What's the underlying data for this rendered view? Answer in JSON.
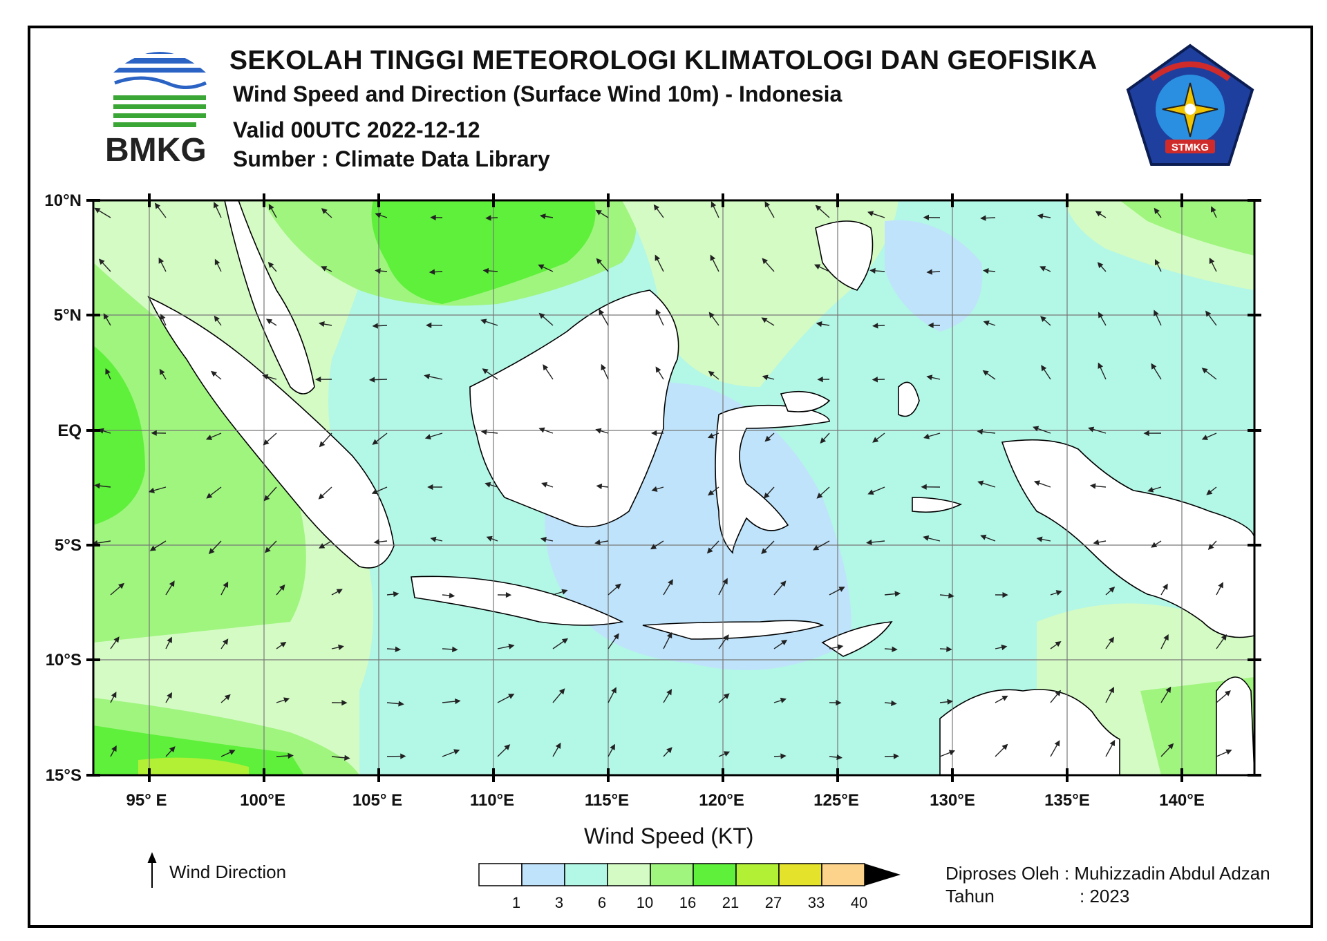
{
  "header": {
    "institution": "SEKOLAH TINGGI METEOROLOGI KLIMATOLOGI DAN GEOFISIKA",
    "subtitle": "Wind Speed and Direction (Surface Wind 10m) - Indonesia",
    "valid": "Valid 00UTC 2022-12-12",
    "source": "Sumber : Climate Data Library",
    "left_logo_text": "BMKG",
    "right_logo_text": "STMKG"
  },
  "map": {
    "lat_labels": [
      "10°N",
      "5°N",
      "EQ",
      "5°S",
      "10°S",
      "15°S"
    ],
    "lon_labels": [
      "95° E",
      "100°E",
      "105° E",
      "110°E",
      "115°E",
      "120°E",
      "125°E",
      "130°E",
      "135°E",
      "140°E"
    ],
    "lat_range": [
      -15,
      10
    ],
    "lon_range": [
      92.6,
      143.3
    ],
    "grid": true
  },
  "legend": {
    "title": "Wind Speed (KT)",
    "wind_direction_label": "Wind Direction",
    "ticks": [
      "1",
      "3",
      "6",
      "10",
      "16",
      "21",
      "27",
      "33",
      "40"
    ],
    "colors": [
      "#ffffff",
      "#bfe3fb",
      "#b3f7e6",
      "#d4fbc4",
      "#9ff57e",
      "#5ef03a",
      "#b2f036",
      "#e4e22a",
      "#fdd38c"
    ],
    "arrow_color": "#000000"
  },
  "footer": {
    "processed_by": "Diproses Oleh : Muhizzadin Abdul Adzan",
    "year_label": "Tahun",
    "year_value": ": 2023"
  },
  "colors": {
    "land": "#ffffff",
    "border": "#000000"
  }
}
